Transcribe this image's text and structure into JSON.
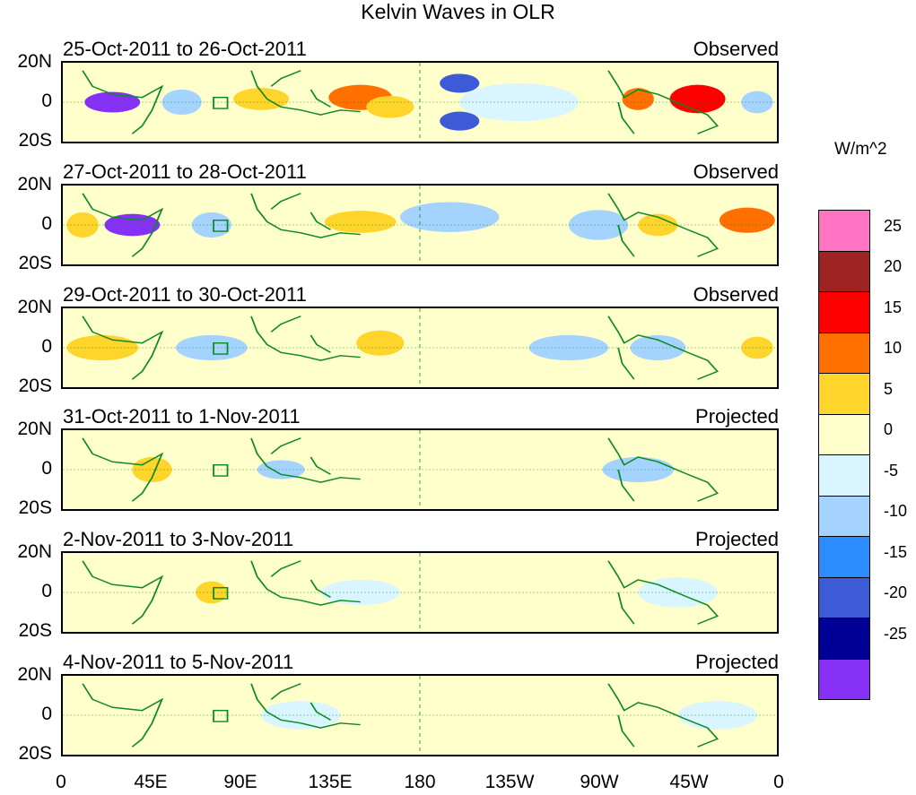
{
  "title": "Kelvin Waves in OLR",
  "chart_data": {
    "type": "heatmap",
    "title": "Kelvin Waves in OLR",
    "units": "W/m^2",
    "x_ticks": [
      "0",
      "45E",
      "90E",
      "135E",
      "180",
      "135W",
      "90W",
      "45W",
      "0"
    ],
    "y_ticks": [
      "20N",
      "0",
      "20S"
    ],
    "panels": [
      {
        "dates": "25-Oct-2011 to 26-Oct-2011",
        "type": "Observed",
        "anomalies": [
          {
            "lon": 25,
            "lat": 0,
            "value": -28,
            "lonw": 14,
            "latw": 9
          },
          {
            "lon": 60,
            "lat": 0,
            "value": -8,
            "lonw": 10,
            "latw": 12
          },
          {
            "lon": 100,
            "lat": 2,
            "value": 6,
            "lonw": 14,
            "latw": 10
          },
          {
            "lon": 150,
            "lat": 3,
            "value": 12,
            "lonw": 16,
            "latw": 12
          },
          {
            "lon": 165,
            "lat": -3,
            "value": 8,
            "lonw": 12,
            "latw": 10
          },
          {
            "lon": 200,
            "lat": 12,
            "value": -15,
            "lonw": 10,
            "latw": 8
          },
          {
            "lon": 200,
            "lat": -12,
            "value": -15,
            "lonw": 10,
            "latw": 8
          },
          {
            "lon": 230,
            "lat": 0,
            "value": -4,
            "lonw": 30,
            "latw": 20
          },
          {
            "lon": 290,
            "lat": 2,
            "value": 12,
            "lonw": 8,
            "latw": 10
          },
          {
            "lon": 320,
            "lat": 2,
            "value": 18,
            "lonw": 14,
            "latw": 14
          },
          {
            "lon": 350,
            "lat": 0,
            "value": -5,
            "lonw": 8,
            "latw": 10
          }
        ]
      },
      {
        "dates": "27-Oct-2011 to 28-Oct-2011",
        "type": "Observed",
        "anomalies": [
          {
            "lon": 35,
            "lat": 0,
            "value": -25,
            "lonw": 14,
            "latw": 10
          },
          {
            "lon": 10,
            "lat": 0,
            "value": 6,
            "lonw": 8,
            "latw": 12
          },
          {
            "lon": 75,
            "lat": 0,
            "value": -5,
            "lonw": 10,
            "latw": 12
          },
          {
            "lon": 150,
            "lat": 2,
            "value": 10,
            "lonw": 18,
            "latw": 10
          },
          {
            "lon": 195,
            "lat": 5,
            "value": -6,
            "lonw": 25,
            "latw": 15
          },
          {
            "lon": 270,
            "lat": 0,
            "value": -5,
            "lonw": 15,
            "latw": 15
          },
          {
            "lon": 300,
            "lat": 0,
            "value": 6,
            "lonw": 10,
            "latw": 10
          },
          {
            "lon": 345,
            "lat": 3,
            "value": 14,
            "lonw": 14,
            "latw": 12
          }
        ]
      },
      {
        "dates": "29-Oct-2011 to 30-Oct-2011",
        "type": "Observed",
        "anomalies": [
          {
            "lon": 20,
            "lat": 0,
            "value": 10,
            "lonw": 18,
            "latw": 12
          },
          {
            "lon": 75,
            "lat": 0,
            "value": -8,
            "lonw": 18,
            "latw": 12
          },
          {
            "lon": 160,
            "lat": 3,
            "value": 10,
            "lonw": 12,
            "latw": 12
          },
          {
            "lon": 200,
            "lat": 0,
            "value": 3,
            "lonw": 20,
            "latw": 10
          },
          {
            "lon": 255,
            "lat": 0,
            "value": -5,
            "lonw": 20,
            "latw": 12
          },
          {
            "lon": 300,
            "lat": 0,
            "value": -5,
            "lonw": 14,
            "latw": 12
          },
          {
            "lon": 350,
            "lat": 0,
            "value": 6,
            "lonw": 8,
            "latw": 10
          }
        ]
      },
      {
        "dates": "31-Oct-2011 to 1-Nov-2011",
        "type": "Projected",
        "anomalies": [
          {
            "lon": 45,
            "lat": 0,
            "value": 10,
            "lonw": 10,
            "latw": 12
          },
          {
            "lon": 20,
            "lat": 0,
            "value": 4,
            "lonw": 12,
            "latw": 12
          },
          {
            "lon": 110,
            "lat": 0,
            "value": -7,
            "lonw": 12,
            "latw": 8
          },
          {
            "lon": 170,
            "lat": 0,
            "value": 2,
            "lonw": 20,
            "latw": 12
          },
          {
            "lon": 290,
            "lat": 0,
            "value": -6,
            "lonw": 18,
            "latw": 12
          }
        ]
      },
      {
        "dates": "2-Nov-2011 to 3-Nov-2011",
        "type": "Projected",
        "anomalies": [
          {
            "lon": 75,
            "lat": 0,
            "value": 6,
            "lonw": 8,
            "latw": 10
          },
          {
            "lon": 30,
            "lat": 0,
            "value": 2,
            "lonw": 14,
            "latw": 12
          },
          {
            "lon": 150,
            "lat": 0,
            "value": -3,
            "lonw": 20,
            "latw": 12
          },
          {
            "lon": 310,
            "lat": 0,
            "value": -2,
            "lonw": 20,
            "latw": 15
          }
        ]
      },
      {
        "dates": "4-Nov-2011 to 5-Nov-2011",
        "type": "Projected",
        "anomalies": [
          {
            "lon": 45,
            "lat": 0,
            "value": 3,
            "lonw": 14,
            "latw": 12
          },
          {
            "lon": 120,
            "lat": 0,
            "value": -3,
            "lonw": 20,
            "latw": 14
          },
          {
            "lon": 230,
            "lat": 0,
            "value": 1,
            "lonw": 25,
            "latw": 12
          },
          {
            "lon": 330,
            "lat": 0,
            "value": -2,
            "lonw": 20,
            "latw": 14
          }
        ]
      }
    ],
    "colorbar": {
      "labels": [
        "25",
        "20",
        "15",
        "10",
        "5",
        "0",
        "-5",
        "-10",
        "-15",
        "-20",
        "-25"
      ],
      "colors": [
        "#ff73c3",
        "#a02323",
        "#ff0000",
        "#ff7000",
        "#ffd42b",
        "#ffffcc",
        "#d9f5ff",
        "#a5d3ff",
        "#2a8cff",
        "#3e5bd7",
        "#000096",
        "#8630f5"
      ]
    }
  }
}
